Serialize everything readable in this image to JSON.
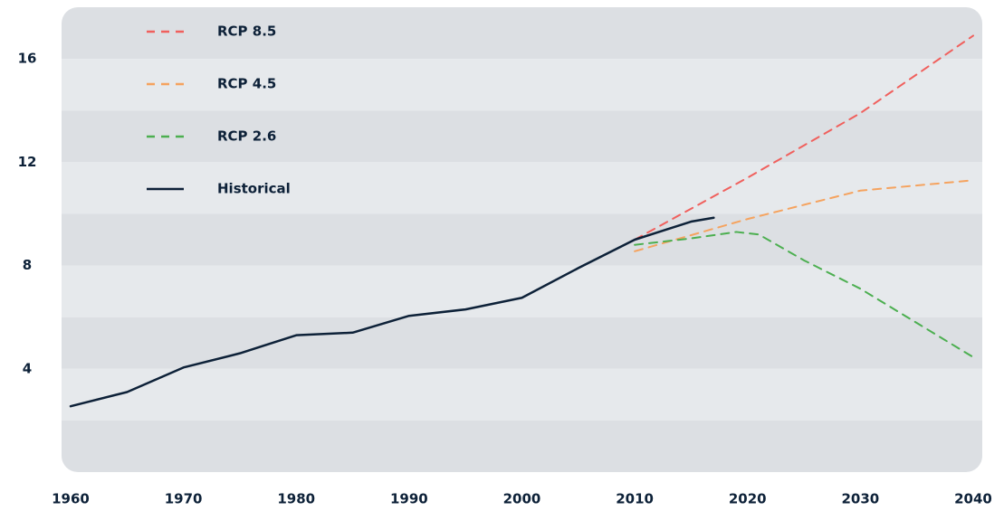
{
  "chart_data": {
    "type": "line",
    "xlim": [
      1960,
      2040
    ],
    "xticks": [
      1960,
      1970,
      1980,
      1990,
      2000,
      2010,
      2020,
      2030,
      2040
    ],
    "ylim": [
      0,
      18
    ],
    "yticks": [
      4,
      8,
      12,
      16
    ],
    "grid": "bands",
    "legend": "top-left",
    "series": [
      {
        "name": "RCP 8.5",
        "color": "#f0605d",
        "dash": true,
        "x": [
          2010,
          2020,
          2030,
          2040
        ],
        "values": [
          9.0,
          11.4,
          13.9,
          16.9
        ]
      },
      {
        "name": "RCP 4.5",
        "color": "#f5a35f",
        "dash": true,
        "x": [
          2010,
          2020,
          2030,
          2040
        ],
        "values": [
          8.55,
          9.8,
          10.9,
          11.3
        ]
      },
      {
        "name": "RCP 2.6",
        "color": "#4caf50",
        "dash": true,
        "x": [
          2010,
          2015,
          2019,
          2021,
          2025,
          2030,
          2040
        ],
        "values": [
          8.8,
          9.05,
          9.3,
          9.2,
          8.2,
          7.1,
          4.45
        ]
      },
      {
        "name": "Historical",
        "color": "#0d2138",
        "dash": false,
        "x": [
          1960,
          1965,
          1970,
          1975,
          1980,
          1985,
          1990,
          1995,
          2000,
          2005,
          2010,
          2015,
          2017
        ],
        "values": [
          2.55,
          3.1,
          4.05,
          4.6,
          5.3,
          5.4,
          6.05,
          6.3,
          6.75,
          7.9,
          9.0,
          9.7,
          9.85
        ]
      }
    ]
  }
}
